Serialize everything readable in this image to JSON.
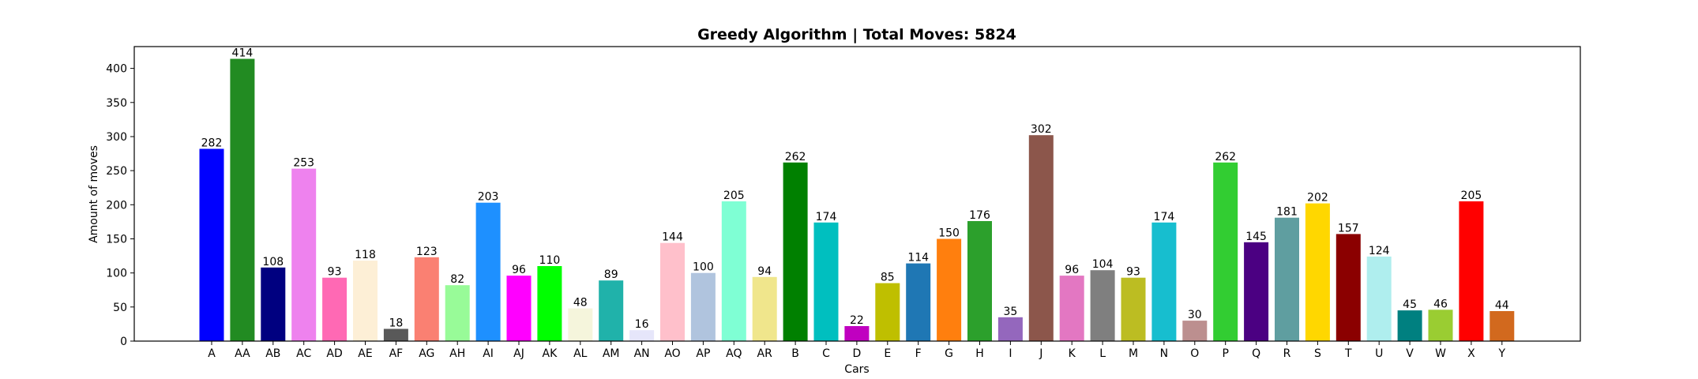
{
  "chart_data": {
    "type": "bar",
    "title": "Greedy Algorithm | Total Moves: 5824",
    "xlabel": "Cars",
    "ylabel": "Amount of moves",
    "ylim": [
      0,
      432
    ],
    "yticks": [
      0,
      50,
      100,
      150,
      200,
      250,
      300,
      350,
      400
    ],
    "grid": false,
    "categories": [
      "A",
      "AA",
      "AB",
      "AC",
      "AD",
      "AE",
      "AF",
      "AG",
      "AH",
      "AI",
      "AJ",
      "AK",
      "AL",
      "AM",
      "AN",
      "AO",
      "AP",
      "AQ",
      "AR",
      "B",
      "C",
      "D",
      "E",
      "F",
      "G",
      "H",
      "I",
      "J",
      "K",
      "L",
      "M",
      "N",
      "O",
      "P",
      "Q",
      "R",
      "S",
      "T",
      "U",
      "V",
      "W",
      "X",
      "Y"
    ],
    "values": [
      282,
      414,
      108,
      253,
      93,
      118,
      18,
      123,
      82,
      203,
      96,
      110,
      48,
      89,
      16,
      144,
      100,
      205,
      94,
      262,
      174,
      22,
      85,
      114,
      150,
      176,
      35,
      302,
      96,
      104,
      93,
      174,
      30,
      262,
      145,
      181,
      202,
      157,
      124,
      45,
      46,
      205,
      44
    ],
    "colors": [
      "#0000ff",
      "#228b22",
      "#000080",
      "#ee82ee",
      "#ff69b4",
      "#fdefd6",
      "#595959",
      "#fa8072",
      "#98fb98",
      "#1e90ff",
      "#ff00ff",
      "#00ff00",
      "#f5f5dc",
      "#20b2aa",
      "#e6e6fa",
      "#ffc0cb",
      "#b0c4de",
      "#7fffd4",
      "#f0e68c",
      "#008000",
      "#00bfbf",
      "#c000c0",
      "#bfbf00",
      "#1f77b4",
      "#ff7f0e",
      "#2ca02c",
      "#9467bd",
      "#8c564b",
      "#e377c2",
      "#7f7f7f",
      "#bcbd22",
      "#17becf",
      "#bc8f8f",
      "#32cd32",
      "#4b0082",
      "#5f9ea0",
      "#ffd700",
      "#8b0000",
      "#afeeee",
      "#008080",
      "#9acd32",
      "#ff0000",
      "#d2691e"
    ]
  }
}
